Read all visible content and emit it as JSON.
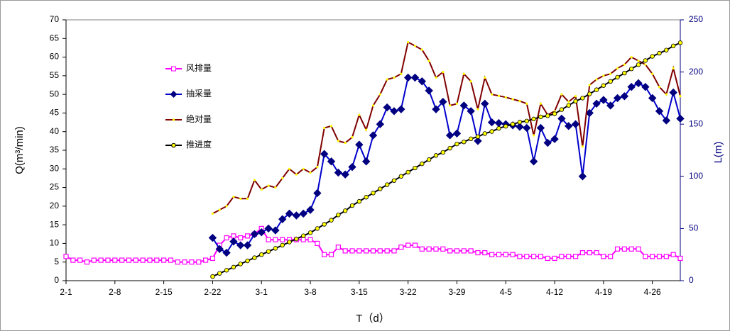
{
  "chart_data": {
    "type": "line",
    "x_label": "T（d）",
    "y_label": "Q(m³/min)",
    "y2_label": "L(m)",
    "categories": [
      "2-1",
      null,
      null,
      null,
      null,
      null,
      null,
      "2-8",
      null,
      null,
      null,
      null,
      null,
      null,
      "2-15",
      null,
      null,
      null,
      null,
      null,
      null,
      "2-22",
      null,
      null,
      null,
      null,
      null,
      null,
      "3-1",
      null,
      null,
      null,
      null,
      null,
      null,
      "3-8",
      null,
      null,
      null,
      null,
      null,
      null,
      "3-15",
      null,
      null,
      null,
      null,
      null,
      null,
      "3-22",
      null,
      null,
      null,
      null,
      null,
      null,
      "3-29",
      null,
      null,
      null,
      null,
      null,
      null,
      "4-5",
      null,
      null,
      null,
      null,
      null,
      null,
      "4-12",
      null,
      null,
      null,
      null,
      null,
      null,
      "4-19",
      null,
      null,
      null,
      null,
      null,
      null,
      "4-26",
      null,
      null,
      null,
      null
    ],
    "ylim": [
      0,
      70
    ],
    "yticks": [
      0,
      5,
      10,
      15,
      20,
      25,
      30,
      35,
      40,
      45,
      50,
      55,
      60,
      65,
      70
    ],
    "y2lim": [
      0,
      250
    ],
    "y2ticks": [
      0,
      50,
      100,
      150,
      200,
      250
    ],
    "grid": false,
    "series": [
      {
        "name": "风排量",
        "color": "#ff00ff",
        "marker": "square",
        "marker_fill": "#ffffff",
        "values": [
          6.5,
          5.5,
          5.5,
          5,
          5.5,
          5.5,
          5.5,
          5.5,
          5.5,
          5.5,
          5.5,
          5.5,
          5.5,
          5.5,
          5.5,
          5.5,
          5,
          5,
          5,
          5,
          5.5,
          6,
          9.5,
          11.5,
          12,
          11.5,
          12,
          12.5,
          14,
          11,
          11,
          11,
          11,
          11,
          11,
          11,
          10,
          7,
          7,
          9,
          8,
          8,
          8,
          8,
          8,
          8,
          8,
          8,
          9,
          9.5,
          9.5,
          8.5,
          8.5,
          8.5,
          8.5,
          8,
          8,
          8,
          8,
          7.5,
          7.5,
          7,
          7,
          7,
          7,
          6.5,
          6.5,
          6.5,
          6.5,
          6,
          6,
          6.5,
          6.5,
          6.5,
          7.5,
          7.5,
          7.5,
          6.5,
          6.5,
          8.5,
          8.5,
          8.5,
          8.5,
          6.5,
          6.5,
          6.5,
          6.5,
          7,
          6
        ]
      },
      {
        "name": "抽采量",
        "color": "#0000cc",
        "marker": "diamond",
        "marker_fill": "#000080",
        "values": [
          null,
          null,
          null,
          null,
          null,
          null,
          null,
          null,
          null,
          null,
          null,
          null,
          null,
          null,
          null,
          null,
          null,
          null,
          null,
          null,
          null,
          11.5,
          8.5,
          7.5,
          10.5,
          9.5,
          9.5,
          12.5,
          13,
          14,
          13.5,
          16.5,
          18,
          17.5,
          18,
          19,
          23.5,
          34,
          32,
          29,
          28.5,
          30.5,
          36.5,
          32,
          39,
          42,
          46.5,
          45.5,
          46,
          54.5,
          54.5,
          53.5,
          51,
          46,
          48,
          39,
          39.5,
          47,
          45.5,
          37.5,
          47.5,
          42.5,
          42.3,
          42,
          41.7,
          41.3,
          41,
          32,
          41,
          37,
          38,
          43.5,
          41.5,
          42,
          28,
          45,
          47.5,
          48.5,
          47,
          49,
          49.5,
          52,
          53,
          52,
          49,
          45.5,
          43,
          50.5,
          43.5
        ]
      },
      {
        "name": "绝对量",
        "color": "#800000",
        "marker": "dot",
        "marker_fill": "#ffff00",
        "values": [
          null,
          null,
          null,
          null,
          null,
          null,
          null,
          null,
          null,
          null,
          null,
          null,
          null,
          null,
          null,
          null,
          null,
          null,
          null,
          null,
          null,
          18,
          19,
          20,
          22.5,
          22,
          22,
          27,
          24.5,
          25.5,
          25,
          27.5,
          30,
          28.5,
          30,
          29,
          30.5,
          41,
          41.5,
          37.5,
          37,
          38.5,
          44.5,
          40.5,
          47,
          50,
          54,
          54.5,
          55.5,
          64,
          63,
          62,
          59,
          54.5,
          56,
          47,
          47.5,
          55.5,
          53.5,
          46,
          54.5,
          50,
          49.6,
          49.2,
          48.7,
          48.2,
          47.5,
          39,
          47.5,
          44.5,
          45.5,
          50,
          48,
          49.5,
          36,
          52.5,
          54,
          55,
          55.5,
          57,
          58,
          60,
          59,
          58,
          55.5,
          52,
          50,
          57,
          49.5
        ]
      },
      {
        "name": "推进度",
        "color": "#000000",
        "marker": "circle",
        "marker_fill": "#ffff00",
        "axis": "y2",
        "values": [
          null,
          null,
          null,
          null,
          null,
          null,
          null,
          null,
          null,
          null,
          null,
          null,
          null,
          null,
          null,
          null,
          null,
          null,
          null,
          null,
          null,
          4,
          7,
          10,
          13,
          16,
          19,
          22,
          25,
          28,
          31,
          34,
          37,
          40,
          43,
          46,
          50,
          54,
          58,
          63,
          67,
          72,
          76,
          80,
          84,
          88,
          92,
          96,
          100,
          104,
          108,
          112,
          116,
          120,
          123,
          127,
          131,
          133,
          136,
          138,
          141,
          143,
          146,
          148,
          150,
          152,
          153,
          155,
          157,
          158,
          160,
          164,
          168,
          172,
          175,
          179,
          183,
          187,
          191,
          195,
          199,
          203,
          207,
          211,
          215,
          218,
          221,
          225,
          228
        ]
      }
    ]
  }
}
